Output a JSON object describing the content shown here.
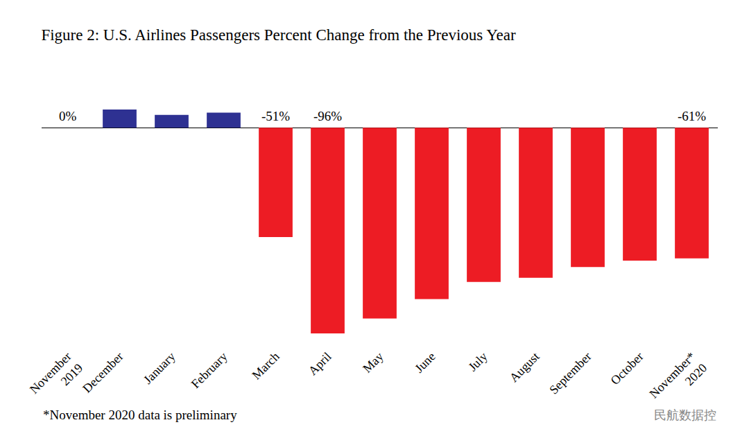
{
  "chart_data": {
    "type": "bar",
    "title": "Figure 2: U.S. Airlines Passengers Percent Change from the Previous Year",
    "categories": [
      "November 2019",
      "December",
      "January",
      "February",
      "March",
      "April",
      "May",
      "June",
      "July",
      "August",
      "September",
      "October",
      "November* 2020"
    ],
    "values": [
      0,
      8.5,
      6,
      7,
      -51,
      -96,
      -89,
      -80,
      -72,
      -70,
      -65,
      -62,
      -61
    ],
    "value_labels": [
      "0%",
      null,
      null,
      null,
      "-51%",
      "-96%",
      null,
      null,
      null,
      null,
      null,
      null,
      "-61%"
    ],
    "colors": [
      "#2e3192",
      "#2e3192",
      "#2e3192",
      "#2e3192",
      "#ed1c24",
      "#ed1c24",
      "#ed1c24",
      "#ed1c24",
      "#ed1c24",
      "#ed1c24",
      "#ed1c24",
      "#ed1c24",
      "#ed1c24"
    ],
    "data_labels": true,
    "tick_labels": "x",
    "grid": false,
    "footnote": "*November 2020 data is preliminary",
    "watermark": "民航数据控"
  }
}
